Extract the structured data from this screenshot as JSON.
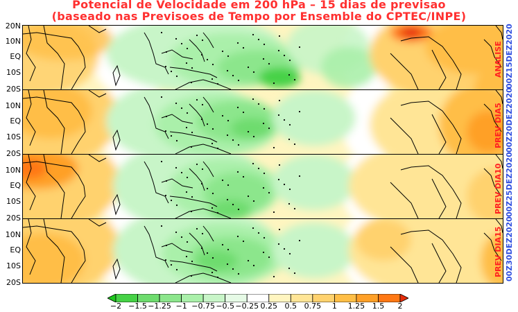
{
  "header": {
    "title": "Potencial de Velocidade em 200 hPa – 15 dias de previsao",
    "subtitle": "(baseado nas Previsoes de Tempo por Ensemble do CPTEC/INPE)"
  },
  "lat_labels": [
    "20N",
    "10N",
    "EQ",
    "10S",
    "20S"
  ],
  "panels": [
    {
      "label": "ANALISE",
      "date": "00Z15DEZ2020"
    },
    {
      "label": "PREV DIA5",
      "date": "00Z20DEZ2020"
    },
    {
      "label": "PREV DIA10",
      "date": "00Z25DEZ2020"
    },
    {
      "label": "PREV DIA15",
      "date": "00Z30DEZ2020"
    }
  ],
  "colorbar": {
    "ticks": [
      "−2",
      "−1.5",
      "−1.25",
      "−1",
      "−0.75",
      "−0.5",
      "−0.25",
      "0.25",
      "0.5",
      "0.75",
      "1",
      "1.25",
      "1.5",
      "2"
    ],
    "colors": [
      "#1ec81e",
      "#46d246",
      "#6edc6e",
      "#8ce68c",
      "#aaf0aa",
      "#c8f5c8",
      "#e6fae6",
      "#ffffff",
      "#fff5c0",
      "#ffe596",
      "#ffd26e",
      "#ffbe46",
      "#ffa028",
      "#ff7814",
      "#e62d0a"
    ]
  }
}
